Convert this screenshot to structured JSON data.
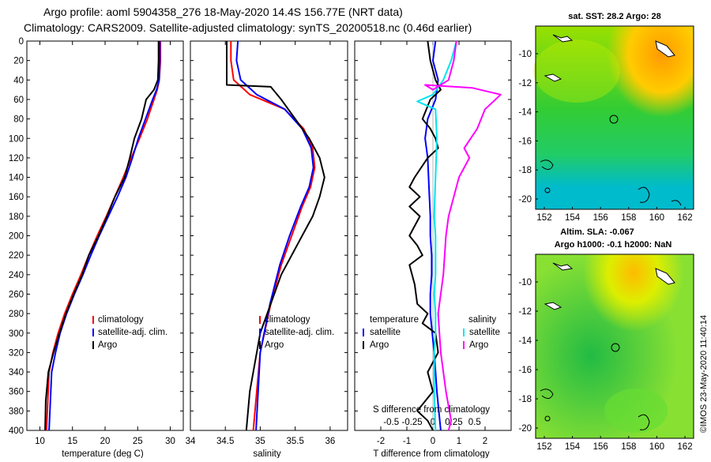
{
  "header": {
    "title_line1": "Argo profile: aoml 5904358_276 18-May-2020 14.4S 156.77E (NRT data)",
    "title_line2": "Climatology: CARS2009. Satellite-adjusted climatology: synTS_20200518.nc (0.46d earlier)"
  },
  "colors": {
    "climatology": "#ff0000",
    "satellite": "#0000ff",
    "argo": "#000000",
    "sat_salinity": "#00e5ee",
    "argo_salinity": "#ff00ff"
  },
  "chart_data": [
    {
      "type": "line",
      "id": "temperature",
      "xlabel": "temperature (deg C)",
      "ylim": [
        0,
        400
      ],
      "xlim": [
        8,
        32
      ],
      "xticks": [
        10,
        15,
        20,
        25,
        30
      ],
      "yticks": [
        0,
        20,
        40,
        60,
        80,
        100,
        120,
        140,
        160,
        180,
        200,
        220,
        240,
        260,
        280,
        300,
        320,
        340,
        360,
        380,
        400
      ],
      "legend": [
        "climatology",
        "satellite-adj. clim.",
        "Argo"
      ],
      "series": [
        {
          "name": "climatology",
          "color": "climatology",
          "x": [
            28.5,
            28.5,
            28.3,
            28.0,
            27.5,
            26.5,
            25.3,
            24.0,
            22.8,
            21.5,
            20.2,
            18.8,
            17.5,
            16.3,
            15.0,
            13.8,
            12.8,
            12.0,
            11.4,
            11.0
          ],
          "y": [
            0,
            20,
            40,
            50,
            60,
            80,
            100,
            120,
            140,
            160,
            180,
            200,
            220,
            240,
            260,
            280,
            300,
            320,
            340,
            400
          ]
        },
        {
          "name": "satellite-adj. clim.",
          "color": "satellite",
          "x": [
            28.4,
            28.4,
            28.3,
            27.9,
            27.3,
            26.2,
            25.1,
            24.2,
            23.2,
            21.9,
            20.5,
            19.1,
            17.8,
            16.6,
            15.3,
            14.1,
            13.1,
            12.4,
            11.8,
            11.4
          ],
          "y": [
            0,
            20,
            40,
            50,
            60,
            80,
            100,
            120,
            140,
            160,
            180,
            200,
            220,
            240,
            260,
            280,
            300,
            320,
            340,
            400
          ]
        },
        {
          "name": "Argo",
          "color": "argo",
          "x": [
            28.2,
            28.2,
            28.1,
            27.5,
            26.3,
            25.6,
            24.5,
            23.8,
            23.0,
            21.5,
            20.3,
            19.0,
            17.5,
            16.5,
            15.2,
            14.0,
            13.0,
            12.1,
            11.3,
            10.9,
            10.8
          ],
          "y": [
            0,
            20,
            40,
            50,
            60,
            80,
            100,
            120,
            140,
            160,
            180,
            200,
            220,
            240,
            260,
            280,
            300,
            320,
            340,
            370,
            400
          ]
        }
      ]
    },
    {
      "type": "line",
      "id": "salinity",
      "xlabel": "salinity",
      "ylim": [
        0,
        400
      ],
      "xlim": [
        34,
        36.25
      ],
      "xticks": [
        34,
        34.5,
        35,
        35.5,
        36
      ],
      "xtick_labels": [
        "34",
        "34.5",
        "35",
        "35.5",
        "36"
      ],
      "legend": [
        "climatology",
        "satellite-adj. clim.",
        "Argo"
      ],
      "series": [
        {
          "name": "climatology",
          "color": "climatology",
          "x": [
            34.58,
            34.58,
            34.62,
            34.85,
            35.35,
            35.62,
            35.75,
            35.78,
            35.72,
            35.6,
            35.45,
            35.3,
            35.15,
            35.0,
            34.9
          ],
          "y": [
            0,
            20,
            40,
            55,
            70,
            90,
            110,
            130,
            150,
            170,
            200,
            230,
            270,
            320,
            400
          ]
        },
        {
          "name": "satellite-adj. clim.",
          "color": "satellite",
          "x": [
            34.68,
            34.66,
            34.72,
            34.95,
            35.35,
            35.6,
            35.73,
            35.76,
            35.7,
            35.58,
            35.42,
            35.28,
            35.14,
            35.0,
            34.94
          ],
          "y": [
            0,
            20,
            40,
            55,
            70,
            90,
            110,
            130,
            150,
            170,
            200,
            230,
            270,
            320,
            400
          ]
        },
        {
          "name": "Argo",
          "color": "argo",
          "x": [
            34.52,
            34.52,
            34.52,
            35.15,
            35.3,
            35.5,
            35.7,
            35.85,
            35.92,
            35.85,
            35.75,
            35.6,
            35.3,
            35.0,
            34.85,
            34.8
          ],
          "y": [
            0,
            20,
            45,
            47,
            60,
            80,
            100,
            120,
            140,
            160,
            180,
            200,
            240,
            300,
            360,
            400
          ]
        }
      ]
    },
    {
      "type": "line",
      "id": "difference",
      "xlabel": "T difference from climatology",
      "xlabel_top": "S difference from climatology",
      "ylim": [
        0,
        400
      ],
      "xlim": [
        -3,
        3
      ],
      "xticks": [
        -2,
        -1,
        0,
        1,
        2
      ],
      "xtick_labels_T": [
        "-2",
        "-1",
        "0",
        "1",
        "2"
      ],
      "xticks_S_positions": [
        -1.6,
        -0.8,
        0,
        0.8,
        1.6
      ],
      "xtick_labels_S": [
        "-0.5",
        "-0.25",
        "0",
        "0.25",
        "0.5"
      ],
      "legend_temperature_title": "temperature",
      "legend_salinity_title": "salinity",
      "legend_temperature": [
        "satellite",
        "Argo"
      ],
      "legend_salinity": [
        "satellite",
        "Argo"
      ],
      "series": [
        {
          "name": "temperature satellite",
          "color": "satellite",
          "x": [
            0.1,
            0.0,
            0.2,
            0.1,
            -0.2,
            -0.3,
            -0.2,
            -0.15,
            -0.1,
            -0.1,
            -0.05,
            -0.05,
            -0.1,
            -0.1,
            0.05,
            0.15,
            0.3
          ],
          "y": [
            0,
            20,
            40,
            60,
            80,
            100,
            120,
            150,
            180,
            200,
            220,
            240,
            260,
            280,
            320,
            360,
            400
          ]
        },
        {
          "name": "temperature Argo",
          "color": "argo",
          "x": [
            -0.2,
            -0.1,
            0.1,
            0.3,
            -0.1,
            -0.4,
            -0.1,
            0.1,
            0.2,
            -0.2,
            -0.7,
            -0.9,
            -0.5,
            -0.9,
            -0.5,
            -0.9,
            -0.6,
            -0.4,
            -0.9,
            -0.7,
            -0.6,
            -0.2,
            -0.4,
            0.1,
            0.2,
            -0.2,
            0.0,
            -0.6,
            -0.2,
            -0.1,
            0.0
          ],
          "y": [
            0,
            20,
            40,
            50,
            60,
            80,
            90,
            100,
            110,
            120,
            140,
            150,
            160,
            170,
            180,
            200,
            210,
            220,
            230,
            250,
            270,
            280,
            290,
            300,
            320,
            340,
            360,
            380,
            390,
            395,
            400
          ]
        },
        {
          "name": "salinity satellite",
          "color": "sat_salinity",
          "x": [
            0.9,
            0.7,
            0.4,
            0.0,
            -0.6,
            0.1,
            0.15,
            0.1,
            0.05,
            0.1,
            0.1,
            0.05,
            0.1,
            0.1,
            0.05,
            0.05,
            0.1
          ],
          "y": [
            0,
            20,
            40,
            55,
            62,
            70,
            100,
            140,
            180,
            200,
            240,
            260,
            280,
            300,
            320,
            360,
            400
          ]
        },
        {
          "name": "salinity Argo",
          "color": "argo_salinity",
          "x": [
            0.9,
            0.8,
            0.6,
            0.0,
            -0.3,
            1.5,
            2.6,
            2.0,
            1.7,
            1.2,
            1.4,
            1.0,
            0.8,
            0.6,
            0.5,
            0.4,
            0.2,
            0.3,
            0.5,
            0.7,
            0.6
          ],
          "y": [
            0,
            20,
            40,
            50,
            45,
            48,
            55,
            70,
            90,
            110,
            120,
            140,
            160,
            180,
            200,
            240,
            280,
            320,
            360,
            390,
            400
          ]
        }
      ]
    }
  ],
  "maps": {
    "sst": {
      "title": "sat. SST: 28.2 Argo: 28",
      "yticks": [
        "-10",
        "-12",
        "-14",
        "-16",
        "-18",
        "-20"
      ],
      "xticks": [
        "152",
        "154",
        "156",
        "158",
        "160",
        "162"
      ]
    },
    "sla": {
      "title_line1": "Altim. SLA: -0.067",
      "title_line2": "Argo h1000: -0.1 h2000: NaN",
      "yticks": [
        "-10",
        "-12",
        "-14",
        "-16",
        "-18",
        "-20"
      ],
      "xticks": [
        "152",
        "154",
        "156",
        "158",
        "160",
        "162"
      ]
    }
  },
  "credit": "©IMOS 23-May-2020 11:40:14"
}
